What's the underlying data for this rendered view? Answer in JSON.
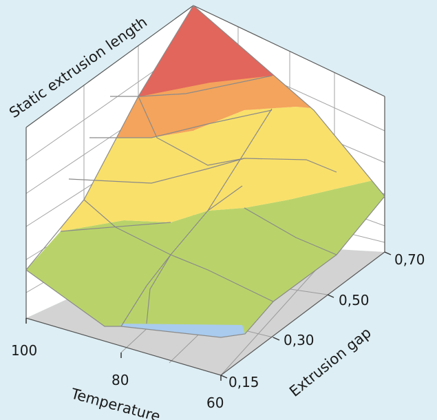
{
  "chart_data": {
    "type": "surface",
    "title": "",
    "zlabel": "Static  extrusion length",
    "xlabel": "Temperature",
    "ylabel": "Extrusion gap",
    "x_ticks": [
      "100",
      "80",
      "60"
    ],
    "y_ticks": [
      "0,15",
      "0,30",
      "0,50",
      "0,70"
    ],
    "grid": true,
    "band_colors": {
      "low": "#a8cbee",
      "mid": "#b9d36a",
      "upper_mid": "#f9e06a",
      "high": "#f4a45c",
      "peak": "#e2665c"
    }
  }
}
